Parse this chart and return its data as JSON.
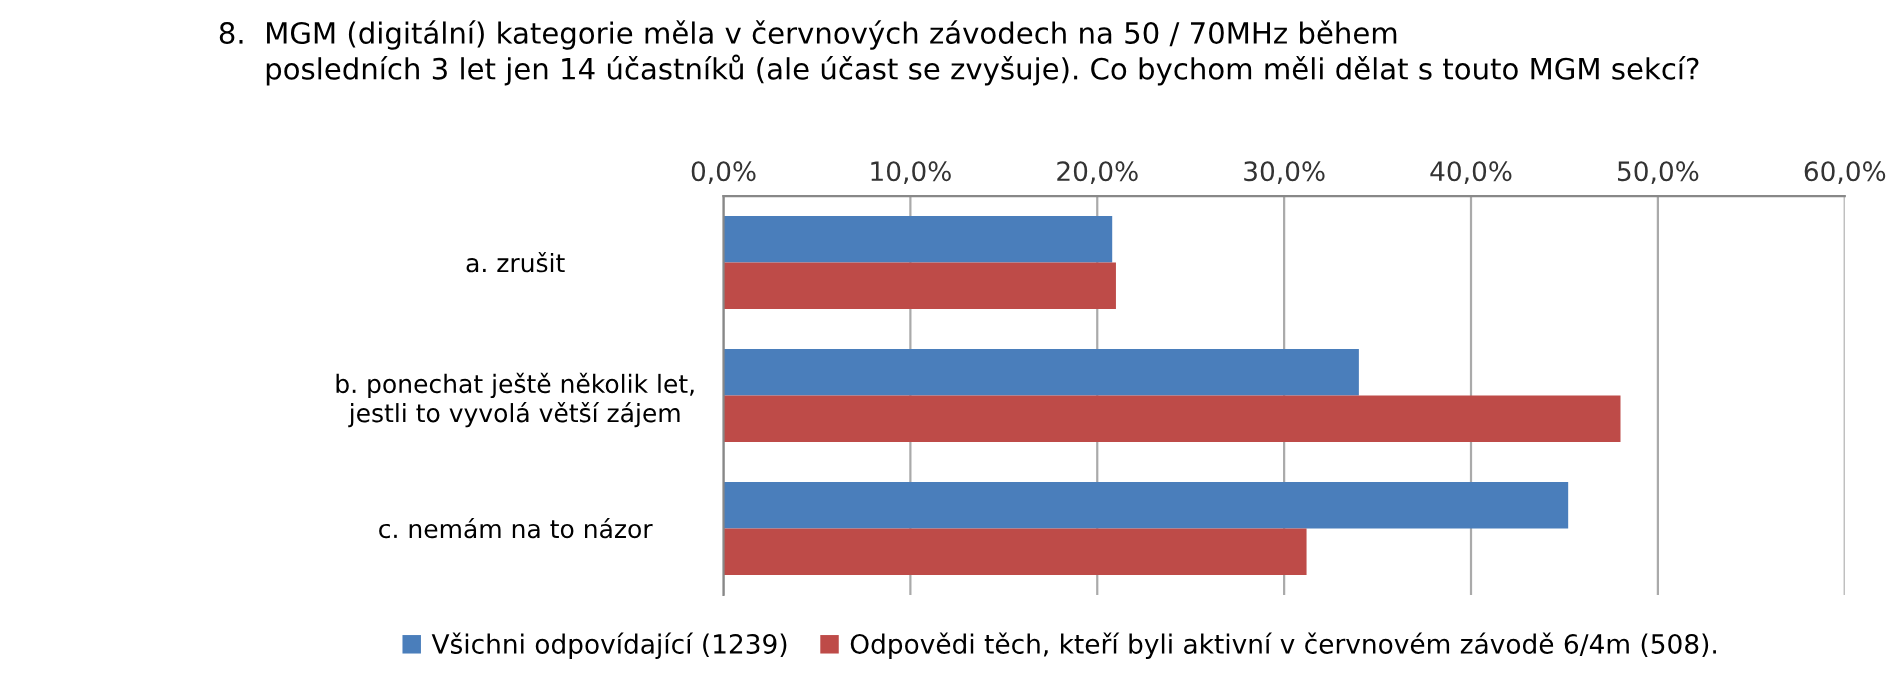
{
  "chart_data": {
    "type": "bar",
    "orientation": "horizontal",
    "title": "8.  MGM (digitální) kategorie měla v červnových závodech na 50 / 70MHz během\n     posledních 3 let jen 14 účastníků (ale účast se zvyšuje). Co bychom měli dělat s touto MGM sekcí?",
    "categories": [
      "a. zrušit",
      "b. ponechat ještě několik let,\njestli to vyvolá větší zájem",
      "c. nemám na to názor"
    ],
    "series": [
      {
        "name": "Všichni odpovídající (1239)",
        "color": "#4a7ebb",
        "values": [
          20.8,
          34.0,
          45.2
        ]
      },
      {
        "name": "Odpovědi těch, kteří byli aktivní v červnovém závodě 6/4m (508).",
        "color": "#be4b48",
        "values": [
          21.0,
          48.0,
          31.2
        ]
      }
    ],
    "xlim": [
      0,
      60
    ],
    "xticks": [
      {
        "value": 0,
        "label": "0,0%"
      },
      {
        "value": 10,
        "label": "10,0%"
      },
      {
        "value": 20,
        "label": "20,0%"
      },
      {
        "value": 30,
        "label": "30,0%"
      },
      {
        "value": 40,
        "label": "40,0%"
      },
      {
        "value": 50,
        "label": "50,0%"
      },
      {
        "value": 60,
        "label": "60,0%"
      }
    ],
    "grid": "x",
    "legend": "bottom"
  }
}
